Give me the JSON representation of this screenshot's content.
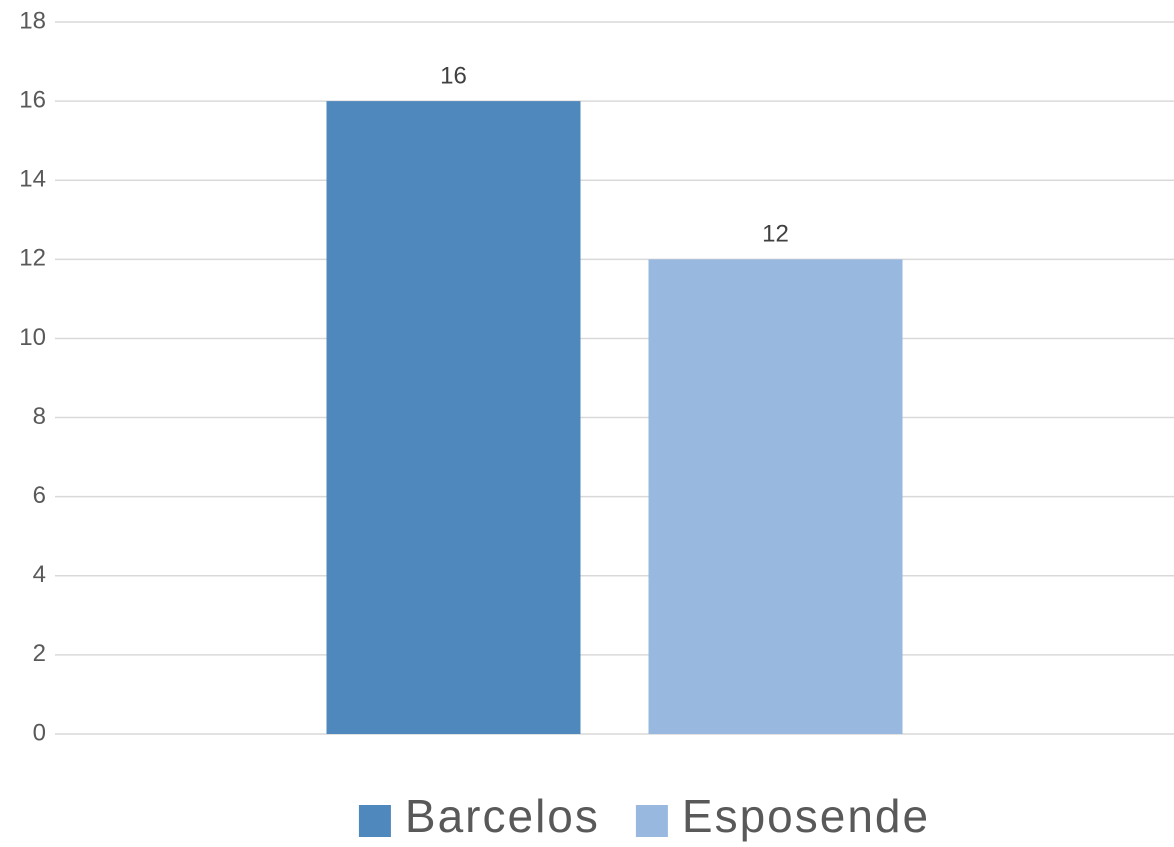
{
  "chart_data": {
    "type": "bar",
    "categories": [
      null
    ],
    "series": [
      {
        "name": "Barcelos",
        "color": "#4f88bd",
        "values": [
          16
        ]
      },
      {
        "name": "Esposende",
        "color": "#98b8df",
        "values": [
          12
        ]
      }
    ],
    "ylim": [
      0,
      18
    ],
    "yticks": [
      0,
      2,
      4,
      6,
      8,
      10,
      12,
      14,
      16,
      18
    ],
    "grid": true,
    "legend": "bottom",
    "data_labels": true
  }
}
